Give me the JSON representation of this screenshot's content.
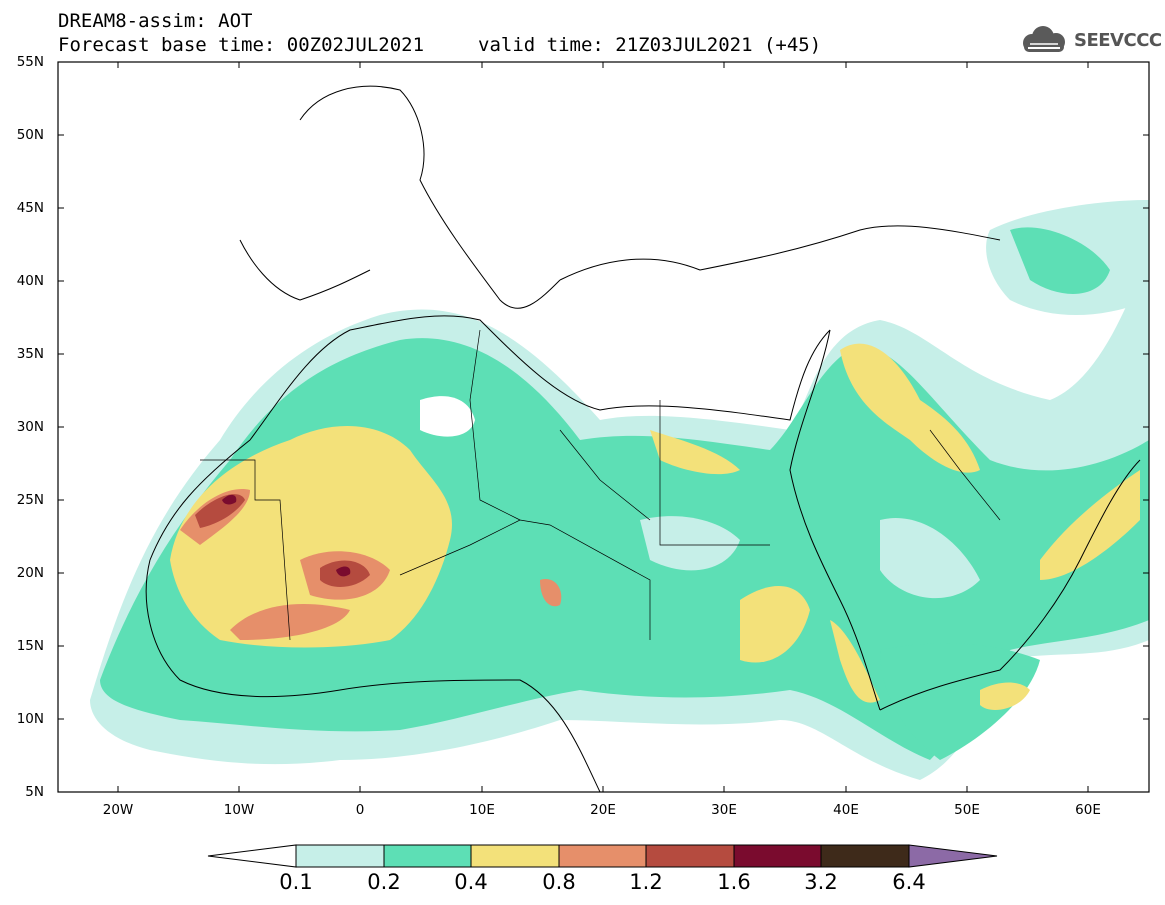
{
  "header": {
    "title": "DREAM8-assim: AOT",
    "base_time": "Forecast base time: 00Z02JUL2021",
    "valid_time": "valid time: 21Z03JUL2021 (+45)",
    "logo_text": "SEEVCCC",
    "logo_icon": "cloud-icon"
  },
  "map": {
    "projection": "lat-lon",
    "lon_range": [
      "25W",
      "65E"
    ],
    "lat_range": [
      "5N",
      "55N"
    ],
    "lat_labels": [
      "55N",
      "50N",
      "45N",
      "40N",
      "35N",
      "30N",
      "25N",
      "20N",
      "15N",
      "10N",
      "5N"
    ],
    "lon_labels": [
      "20W",
      "10W",
      "0",
      "10E",
      "20E",
      "30E",
      "40E",
      "50E",
      "60E"
    ],
    "background": "#ffffff",
    "border_color": "#000000"
  },
  "colorbar": {
    "thresholds": [
      "0.1",
      "0.2",
      "0.4",
      "0.8",
      "1.2",
      "1.6",
      "3.2",
      "6.4"
    ],
    "colors": [
      "#c6efe8",
      "#5ddfb5",
      "#f3e17a",
      "#e68f6a",
      "#b54b3f",
      "#7a0b2e",
      "#3e2a1a",
      "#8c6aa6"
    ],
    "extends": "both"
  }
}
